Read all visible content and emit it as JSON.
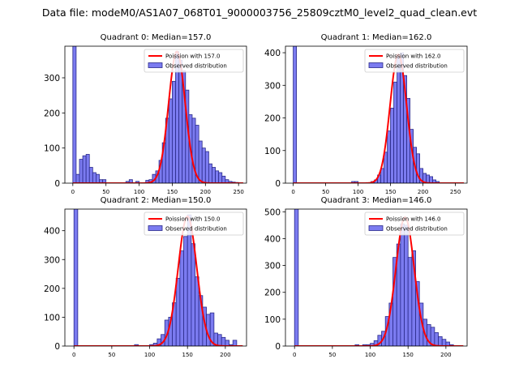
{
  "suptitle": "Data file: modeM0/AS1A07_068T01_9000003756_25809cztM0_level2_quad_clean.evt",
  "colors": {
    "bar_fill": "#7b7bf0",
    "bar_edge": "#2a2a8a",
    "curve": "#ff0000"
  },
  "chart_data": [
    {
      "type": "bar",
      "title": "Quadrant 0: Median=157.0",
      "legend": [
        "Poission with 157.0",
        "Observed distribution"
      ],
      "legend_position": "top-right",
      "xlim": [
        -12,
        262
      ],
      "ylim": [
        0,
        390
      ],
      "xticks": [
        0,
        50,
        100,
        150,
        200,
        250
      ],
      "yticks": [
        0,
        100,
        200,
        300
      ],
      "bin_width": 5,
      "bins": [
        [
          0,
          390
        ],
        [
          5,
          25
        ],
        [
          10,
          68
        ],
        [
          15,
          78
        ],
        [
          20,
          82
        ],
        [
          25,
          45
        ],
        [
          30,
          30
        ],
        [
          35,
          25
        ],
        [
          40,
          10
        ],
        [
          45,
          10
        ],
        [
          80,
          5
        ],
        [
          85,
          10
        ],
        [
          95,
          5
        ],
        [
          110,
          8
        ],
        [
          115,
          10
        ],
        [
          120,
          25
        ],
        [
          125,
          35
        ],
        [
          130,
          65
        ],
        [
          135,
          115
        ],
        [
          140,
          185
        ],
        [
          145,
          240
        ],
        [
          150,
          290
        ],
        [
          155,
          375
        ],
        [
          160,
          350
        ],
        [
          165,
          320
        ],
        [
          170,
          265
        ],
        [
          175,
          195
        ],
        [
          180,
          185
        ],
        [
          185,
          165
        ],
        [
          190,
          120
        ],
        [
          195,
          100
        ],
        [
          200,
          90
        ],
        [
          205,
          55
        ],
        [
          210,
          45
        ],
        [
          215,
          35
        ],
        [
          220,
          30
        ],
        [
          225,
          20
        ],
        [
          230,
          10
        ],
        [
          235,
          5
        ],
        [
          240,
          3
        ],
        [
          245,
          2
        ]
      ],
      "poisson_mean": 157,
      "poisson_peak": 375
    },
    {
      "type": "bar",
      "title": "Quadrant 1: Median=162.0",
      "legend": [
        "Poission with 162.0",
        "Observed distribution"
      ],
      "legend_position": "top-right",
      "xlim": [
        -12,
        268
      ],
      "ylim": [
        0,
        420
      ],
      "xticks": [
        0,
        50,
        100,
        150,
        200,
        250
      ],
      "yticks": [
        0,
        100,
        200,
        300,
        400
      ],
      "bin_width": 5,
      "bins": [
        [
          0,
          420
        ],
        [
          90,
          5
        ],
        [
          95,
          5
        ],
        [
          120,
          5
        ],
        [
          125,
          10
        ],
        [
          130,
          25
        ],
        [
          135,
          45
        ],
        [
          140,
          95
        ],
        [
          145,
          160
        ],
        [
          150,
          230
        ],
        [
          155,
          310
        ],
        [
          160,
          390
        ],
        [
          165,
          400
        ],
        [
          170,
          330
        ],
        [
          175,
          260
        ],
        [
          180,
          165
        ],
        [
          185,
          110
        ],
        [
          190,
          90
        ],
        [
          195,
          45
        ],
        [
          200,
          30
        ],
        [
          205,
          25
        ],
        [
          210,
          20
        ],
        [
          215,
          10
        ],
        [
          220,
          5
        ]
      ],
      "poisson_mean": 162,
      "poisson_peak": 395
    },
    {
      "type": "bar",
      "title": "Quadrant 2: Median=150.0",
      "legend": [
        "Poission with 150.0",
        "Observed distribution"
      ],
      "legend_position": "top-right",
      "xlim": [
        -12,
        228
      ],
      "ylim": [
        0,
        475
      ],
      "xticks": [
        0,
        50,
        100,
        150,
        200
      ],
      "yticks": [
        0,
        100,
        200,
        300,
        400
      ],
      "bin_width": 5,
      "bins": [
        [
          0,
          475
        ],
        [
          80,
          5
        ],
        [
          100,
          5
        ],
        [
          105,
          10
        ],
        [
          110,
          25
        ],
        [
          115,
          40
        ],
        [
          120,
          90
        ],
        [
          125,
          100
        ],
        [
          130,
          150
        ],
        [
          135,
          235
        ],
        [
          140,
          330
        ],
        [
          145,
          380
        ],
        [
          150,
          455
        ],
        [
          155,
          355
        ],
        [
          160,
          240
        ],
        [
          165,
          175
        ],
        [
          170,
          135
        ],
        [
          175,
          110
        ],
        [
          180,
          115
        ],
        [
          185,
          45
        ],
        [
          190,
          40
        ],
        [
          195,
          30
        ],
        [
          200,
          20
        ],
        [
          205,
          5
        ],
        [
          210,
          20
        ]
      ],
      "poisson_mean": 150,
      "poisson_peak": 450
    },
    {
      "type": "bar",
      "title": "Quadrant 3: Median=146.0",
      "legend": [
        "Poission with 146.0",
        "Observed distribution"
      ],
      "legend_position": "top-right",
      "xlim": [
        -12,
        228
      ],
      "ylim": [
        0,
        510
      ],
      "xticks": [
        0,
        50,
        100,
        150,
        200
      ],
      "yticks": [
        0,
        100,
        200,
        300,
        400,
        500
      ],
      "bin_width": 5,
      "bins": [
        [
          0,
          510
        ],
        [
          80,
          5
        ],
        [
          90,
          5
        ],
        [
          95,
          5
        ],
        [
          100,
          10
        ],
        [
          105,
          20
        ],
        [
          110,
          40
        ],
        [
          115,
          55
        ],
        [
          120,
          110
        ],
        [
          125,
          160
        ],
        [
          130,
          330
        ],
        [
          135,
          380
        ],
        [
          140,
          455
        ],
        [
          145,
          450
        ],
        [
          150,
          330
        ],
        [
          155,
          355
        ],
        [
          160,
          240
        ],
        [
          165,
          160
        ],
        [
          170,
          100
        ],
        [
          175,
          80
        ],
        [
          180,
          70
        ],
        [
          185,
          50
        ],
        [
          190,
          35
        ],
        [
          195,
          25
        ],
        [
          200,
          15
        ],
        [
          205,
          5
        ]
      ],
      "poisson_mean": 146,
      "poisson_peak": 480
    }
  ]
}
